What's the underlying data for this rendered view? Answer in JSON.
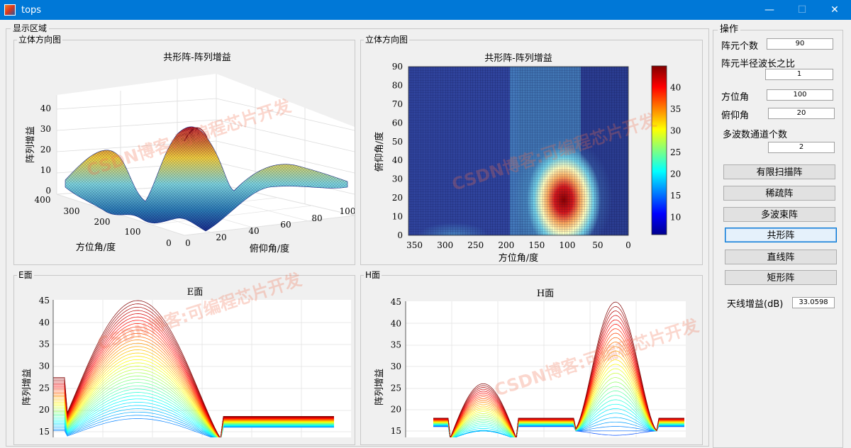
{
  "window": {
    "title": "tops"
  },
  "display_area": {
    "title": "显示区域"
  },
  "panels": {
    "p3d": {
      "label": "立体方向图",
      "title": "共形阵-阵列增益",
      "zlabel": "阵列增益",
      "xlabel": "方位角/度",
      "ylabel": "俯仰角/度",
      "zticks": [
        "0",
        "10",
        "20",
        "30",
        "40"
      ],
      "xticks": [
        "400",
        "300",
        "200",
        "100",
        "0"
      ],
      "yticks": [
        "0",
        "20",
        "40",
        "60",
        "80",
        "100"
      ]
    },
    "pmap": {
      "label": "立体方向图",
      "title": "共形阵-阵列增益",
      "ylabel": "俯仰角/度",
      "xlabel": "方位角/度",
      "yticks": [
        "0",
        "10",
        "20",
        "30",
        "40",
        "50",
        "60",
        "70",
        "80",
        "90"
      ],
      "xticks": [
        "350",
        "300",
        "250",
        "200",
        "150",
        "100",
        "50",
        "0"
      ],
      "cbticks": [
        "10",
        "15",
        "20",
        "25",
        "30",
        "35",
        "40"
      ]
    },
    "pe": {
      "label": "E面",
      "title": "E面",
      "ylabel": "阵列增益",
      "yticks": [
        "15",
        "20",
        "25",
        "30",
        "35",
        "40",
        "45"
      ]
    },
    "ph": {
      "label": "H面",
      "title": "H面",
      "ylabel": "阵列增益",
      "yticks": [
        "15",
        "20",
        "25",
        "30",
        "35",
        "40",
        "45"
      ]
    }
  },
  "ops": {
    "title": "操作",
    "fields": [
      {
        "label": "阵元个数",
        "value": "90"
      },
      {
        "label": "阵元半径波长之比",
        "value": "1"
      },
      {
        "label": "方位角",
        "value": "100"
      },
      {
        "label": "俯仰角",
        "value": "20"
      },
      {
        "label": "多波数通道个数",
        "value": "2"
      }
    ],
    "buttons": [
      "有限扫描阵",
      "稀疏阵",
      "多波束阵",
      "共形阵",
      "直线阵",
      "矩形阵"
    ],
    "active_button": "共形阵",
    "gain_label": "天线增益(dB)",
    "gain_value": "33.0598"
  },
  "watermark": "CSDN博客:可编程芯片开发",
  "chart_data": [
    {
      "type": "surface",
      "title": "共形阵-阵列增益",
      "xlabel": "方位角/度",
      "ylabel": "俯仰角/度",
      "zlabel": "阵列增益",
      "xlim": [
        0,
        400
      ],
      "ylim": [
        0,
        100
      ],
      "zlim": [
        0,
        45
      ],
      "peak": {
        "azimuth": 100,
        "elevation": 20,
        "gain": 33
      }
    },
    {
      "type": "heatmap",
      "title": "共形阵-阵列增益",
      "xlabel": "方位角/度",
      "ylabel": "俯仰角/度",
      "xlim": [
        360,
        0
      ],
      "ylim": [
        0,
        90
      ],
      "clim": [
        6,
        45
      ],
      "colormap": "jet",
      "peak": {
        "azimuth": 100,
        "elevation": 20
      }
    },
    {
      "type": "line",
      "title": "E面",
      "ylabel": "阵列增益",
      "ylim": [
        13,
        45
      ],
      "colormap": "jet",
      "peak": 45
    },
    {
      "type": "line",
      "title": "H面",
      "ylabel": "阵列增益",
      "ylim": [
        13,
        45
      ],
      "colormap": "jet",
      "peaks": [
        26,
        45
      ]
    }
  ]
}
